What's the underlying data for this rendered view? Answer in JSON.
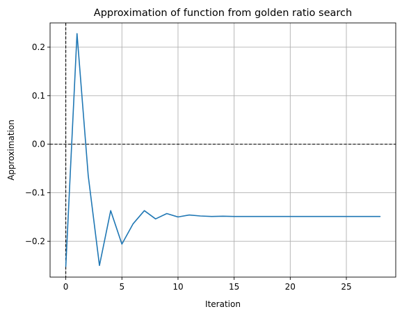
{
  "chart_data": {
    "type": "line",
    "title": "Approximation of function from golden ratio search",
    "xlabel": "Iteration",
    "ylabel": "Approximation",
    "xlim": [
      -1.4,
      29.4
    ],
    "ylim": [
      -0.274,
      0.25
    ],
    "xticks": [
      0,
      5,
      10,
      15,
      20,
      25
    ],
    "yticks": [
      -0.2,
      -0.1,
      0.0,
      0.1,
      0.2
    ],
    "xtick_labels": [
      "0",
      "5",
      "10",
      "15",
      "20",
      "25"
    ],
    "ytick_labels": [
      "−0.2",
      "−0.1",
      "0.0",
      "0.1",
      "0.2"
    ],
    "grid": true,
    "reference_lines": {
      "x": 0,
      "y": 0,
      "style": "dashed",
      "color": "#000000"
    },
    "series": [
      {
        "color": "#1f77b4",
        "x": [
          0,
          1,
          2,
          3,
          4,
          5,
          6,
          7,
          8,
          9,
          10,
          11,
          12,
          13,
          14,
          15,
          16,
          17,
          18,
          19,
          20,
          21,
          22,
          23,
          24,
          25,
          26,
          27,
          28
        ],
        "y": [
          -0.252,
          0.228,
          -0.065,
          -0.25,
          -0.137,
          -0.206,
          -0.164,
          -0.137,
          -0.154,
          -0.143,
          -0.15,
          -0.146,
          -0.148,
          -0.149,
          -0.1485,
          -0.149,
          -0.149,
          -0.149,
          -0.149,
          -0.149,
          -0.149,
          -0.149,
          -0.149,
          -0.149,
          -0.149,
          -0.149,
          -0.149,
          -0.149,
          -0.149
        ]
      }
    ]
  }
}
